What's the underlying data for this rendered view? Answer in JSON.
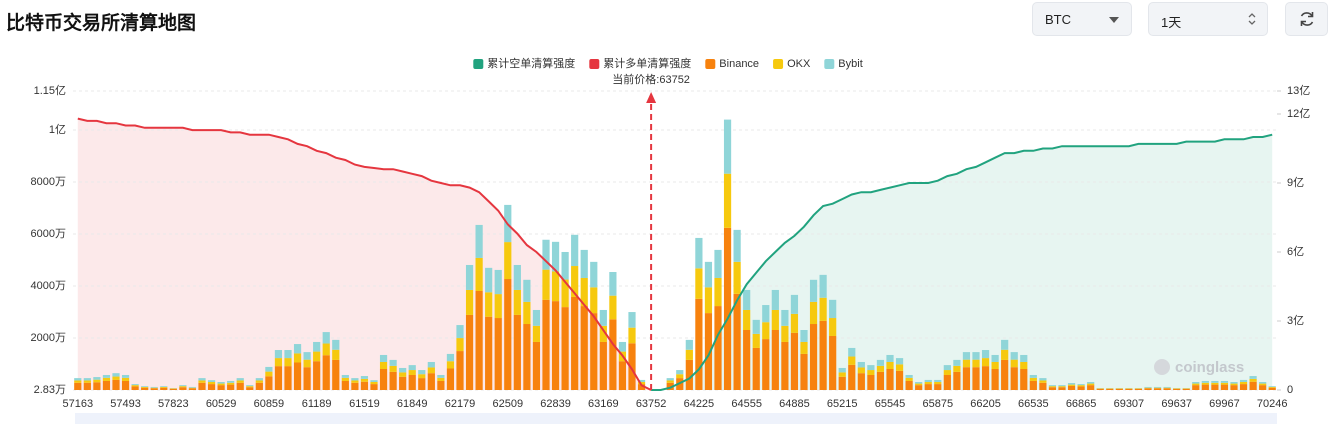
{
  "header": {
    "title": "比特币交易所清算地图",
    "symbol": "BTC",
    "interval": "1天"
  },
  "chart_data": {
    "type": "combo",
    "stacked": true,
    "grid": true,
    "watermark": "coinglass",
    "current_price": {
      "value": 63752,
      "label": "当前价格:63752",
      "color": "#e5363f"
    },
    "categories": [
      "57163",
      null,
      null,
      null,
      null,
      "57493",
      null,
      null,
      null,
      null,
      "57823",
      null,
      null,
      null,
      null,
      "60529",
      null,
      null,
      null,
      null,
      "60859",
      null,
      null,
      null,
      null,
      "61189",
      null,
      null,
      null,
      null,
      "61519",
      null,
      null,
      null,
      null,
      "61849",
      null,
      null,
      null,
      null,
      "62179",
      null,
      null,
      null,
      null,
      "62509",
      null,
      null,
      null,
      null,
      "62839",
      null,
      null,
      null,
      null,
      "63169",
      null,
      null,
      null,
      null,
      "63752",
      null,
      null,
      null,
      null,
      "64225",
      null,
      null,
      null,
      null,
      "64555",
      null,
      null,
      null,
      null,
      "64885",
      null,
      null,
      null,
      null,
      "65215",
      null,
      null,
      null,
      null,
      "65545",
      null,
      null,
      null,
      null,
      "65875",
      null,
      null,
      null,
      null,
      "66205",
      null,
      null,
      null,
      null,
      "66535",
      null,
      null,
      null,
      null,
      "66865",
      null,
      null,
      null,
      null,
      "69307",
      null,
      null,
      null,
      null,
      "69637",
      null,
      null,
      null,
      null,
      "69967",
      null,
      null,
      null,
      null,
      "70246"
    ],
    "ylim": [
      28300,
      115000000
    ],
    "yticks": [
      {
        "value": 28300,
        "label": "2.83万"
      },
      {
        "value": 20000000,
        "label": "2000万"
      },
      {
        "value": 40000000,
        "label": "4000万"
      },
      {
        "value": 60000000,
        "label": "6000万"
      },
      {
        "value": 80000000,
        "label": "8000万"
      },
      {
        "value": 100000000,
        "label": "1亿"
      },
      {
        "value": 115000000,
        "label": "1.15亿"
      }
    ],
    "y2lim": [
      0,
      1300000000
    ],
    "y2ticks": [
      0,
      {
        "value": 300000000,
        "label": "3亿"
      },
      {
        "value": 600000000,
        "label": "6亿"
      },
      {
        "value": 900000000,
        "label": "9亿"
      },
      {
        "value": 1200000000,
        "label": "12亿"
      },
      {
        "value": 1300000000,
        "label": "13亿"
      }
    ],
    "series": [
      {
        "name": "累计空单清算强度",
        "type": "line",
        "axis": "y2",
        "color": "#21a37f",
        "values": [
          null,
          null,
          null,
          null,
          null,
          null,
          null,
          null,
          null,
          null,
          null,
          null,
          null,
          null,
          null,
          null,
          null,
          null,
          null,
          null,
          null,
          null,
          null,
          null,
          null,
          null,
          null,
          null,
          null,
          null,
          null,
          null,
          null,
          null,
          null,
          null,
          null,
          null,
          null,
          null,
          null,
          null,
          null,
          null,
          null,
          null,
          null,
          null,
          null,
          null,
          null,
          null,
          null,
          null,
          null,
          null,
          null,
          null,
          null,
          null,
          0,
          0,
          10000000.0,
          30000000.0,
          50000000.0,
          90000000.0,
          150000000.0,
          240000000.0,
          310000000.0,
          390000000.0,
          460000000.0,
          510000000.0,
          560000000.0,
          600000000.0,
          640000000.0,
          670000000.0,
          710000000.0,
          760000000.0,
          800000000.0,
          810000000.0,
          830000000.0,
          850000000.0,
          860000000.0,
          860000000.0,
          870000000.0,
          880000000.0,
          890000000.0,
          900000000.0,
          900000000.0,
          900000000.0,
          910000000.0,
          930000000.0,
          940000000.0,
          960000000.0,
          970000000.0,
          990000000.0,
          1010000000.0,
          1030000000.0,
          1030000000.0,
          1040000000.0,
          1040000000.0,
          1050000000.0,
          1050000000.0,
          1060000000.0,
          1060000000.0,
          1060000000.0,
          1060000000.0,
          1060000000.0,
          1060000000.0,
          1060000000.0,
          1060000000.0,
          1070000000.0,
          1070000000.0,
          1070000000.0,
          1070000000.0,
          1070000000.0,
          1080000000.0,
          1080000000.0,
          1080000000.0,
          1080000000.0,
          1090000000.0,
          1090000000.0,
          1090000000.0,
          1100000000.0,
          1100000000.0,
          1110000000.0
        ]
      },
      {
        "name": "累计多单清算强度",
        "type": "line",
        "axis": "y2",
        "color": "#e5363f",
        "values": [
          1180000000.0,
          1170000000.0,
          1170000000.0,
          1160000000.0,
          1160000000.0,
          1150000000.0,
          1150000000.0,
          1140000000.0,
          1140000000.0,
          1140000000.0,
          1140000000.0,
          1140000000.0,
          1130000000.0,
          1130000000.0,
          1130000000.0,
          1130000000.0,
          1120000000.0,
          1120000000.0,
          1110000000.0,
          1110000000.0,
          1110000000.0,
          1100000000.0,
          1090000000.0,
          1070000000.0,
          1060000000.0,
          1040000000.0,
          1030000000.0,
          1010000000.0,
          1000000000.0,
          980000000.0,
          970000000.0,
          965000000.0,
          960000000.0,
          960000000.0,
          950000000.0,
          940000000.0,
          930000000.0,
          910000000.0,
          900000000.0,
          890000000.0,
          890000000.0,
          880000000.0,
          860000000.0,
          820000000.0,
          780000000.0,
          720000000.0,
          680000000.0,
          630000000.0,
          600000000.0,
          560000000.0,
          520000000.0,
          470000000.0,
          420000000.0,
          370000000.0,
          320000000.0,
          260000000.0,
          200000000.0,
          150000000.0,
          90000000.0,
          20000000.0,
          0,
          null,
          null,
          null,
          null,
          null,
          null,
          null,
          null,
          null,
          null,
          null,
          null,
          null,
          null,
          null,
          null,
          null,
          null,
          null,
          null,
          null,
          null,
          null,
          null,
          null,
          null,
          null,
          null,
          null,
          null,
          null,
          null,
          null,
          null,
          null,
          null,
          null,
          null,
          null,
          null,
          null,
          null,
          null,
          null,
          null,
          null,
          null,
          null,
          null,
          null,
          null,
          null,
          null,
          null,
          null,
          null,
          null,
          null,
          null,
          null,
          null,
          null,
          null,
          null,
          null
        ]
      },
      {
        "name": "Binance",
        "type": "bar",
        "color": "#f7820e",
        "values": [
          2800000.0,
          2800000.0,
          3000000.0,
          3500000.0,
          3900000.0,
          3500000.0,
          1400000.0,
          900000.0,
          700000.0,
          900000.0,
          500000.0,
          1100000.0,
          700000.0,
          2800000.0,
          2300000.0,
          1900000.0,
          2100000.0,
          2800000.0,
          1100000.0,
          2800000.0,
          5300000.0,
          9200000.0,
          9200000.0,
          10600000.0,
          8800000.0,
          11100000.0,
          13400000.0,
          11600000.0,
          3500000.0,
          2800000.0,
          3200000.0,
          2300000.0,
          8100000.0,
          7000000.0,
          5100000.0,
          5800000.0,
          4600000.0,
          6500000.0,
          3500000.0,
          8300000.0,
          15000000.0,
          28900000.0,
          38100000.0,
          28200000.0,
          27700000.0,
          42700000.0,
          28900000.0,
          25400000.0,
          18500000.0,
          34700000.0,
          34200000.0,
          31900000.0,
          35800000.0,
          32300000.0,
          29600000.0,
          18500000.0,
          27200000.0,
          11100000.0,
          18000000.0,
          2300000.0,
          0,
          0,
          2800000.0,
          4600000.0,
          11600000.0,
          35100000.0,
          29600000.0,
          32300000.0,
          62400000.0,
          37000000.0,
          23100000.0,
          16200000.0,
          19600000.0,
          23100000.0,
          18500000.0,
          22000000.0,
          13900000.0,
          25400000.0,
          26600000.0,
          20800000.0,
          5100000.0,
          9700000.0,
          6500000.0,
          5800000.0,
          7000000.0,
          8100000.0,
          7400000.0,
          3500000.0,
          1900000.0,
          2300000.0,
          2300000.0,
          5800000.0,
          7000000.0,
          8800000.0,
          8800000.0,
          9200000.0,
          8100000.0,
          11600000.0,
          8800000.0,
          8100000.0,
          3500000.0,
          2800000.0,
          1100000.0,
          1100000.0,
          1600000.0,
          1400000.0,
          1900000.0,
          500000.0,
          500000.0,
          500000.0,
          500000.0,
          500000.0,
          700000.0,
          700000.0,
          700000.0,
          500000.0,
          500000.0,
          1900000.0,
          2100000.0,
          2100000.0,
          2100000.0,
          1900000.0,
          2300000.0,
          3200000.0,
          1900000.0,
          900000.0
        ]
      },
      {
        "name": "OKX",
        "type": "bar",
        "color": "#f6c90e",
        "values": [
          900000.0,
          900000.0,
          1000000.0,
          1200000.0,
          1300000.0,
          1200000.0,
          500000.0,
          300000.0,
          200000.0,
          300000.0,
          200000.0,
          400000.0,
          200000.0,
          900000.0,
          800000.0,
          600000.0,
          700000.0,
          900000.0,
          400000.0,
          900000.0,
          1800000.0,
          3100000.0,
          3100000.0,
          3500000.0,
          2900000.0,
          3700000.0,
          4500000.0,
          3900000.0,
          1200000.0,
          900000.0,
          1100000.0,
          800000.0,
          2700000.0,
          2300000.0,
          1700000.0,
          1900000.0,
          1500000.0,
          2200000.0,
          1200000.0,
          2800000.0,
          5000000.0,
          9600000.0,
          12700000.0,
          9400000.0,
          9200000.0,
          14200000.0,
          9600000.0,
          8500000.0,
          6200000.0,
          11600000.0,
          11400000.0,
          10600000.0,
          11900000.0,
          10800000.0,
          9900000.0,
          6200000.0,
          9100000.0,
          3700000.0,
          6000000.0,
          800000.0,
          0,
          0,
          900000.0,
          1500000.0,
          3900000.0,
          11700000.0,
          9900000.0,
          10800000.0,
          20800000.0,
          12300000.0,
          7700000.0,
          5400000.0,
          6500000.0,
          7700000.0,
          6200000.0,
          7300000.0,
          4600000.0,
          8500000.0,
          8900000.0,
          6900000.0,
          1700000.0,
          3200000.0,
          2200000.0,
          1900000.0,
          2300000.0,
          2700000.0,
          2500000.0,
          1200000.0,
          600000.0,
          800000.0,
          800000.0,
          1900000.0,
          2300000.0,
          2900000.0,
          2900000.0,
          3100000.0,
          2700000.0,
          3900000.0,
          2900000.0,
          2700000.0,
          1200000.0,
          900000.0,
          400000.0,
          400000.0,
          500000.0,
          500000.0,
          600000.0,
          200000.0,
          200000.0,
          200000.0,
          200000.0,
          200000.0,
          200000.0,
          200000.0,
          200000.0,
          200000.0,
          200000.0,
          600000.0,
          700000.0,
          700000.0,
          700000.0,
          600000.0,
          800000.0,
          1100000.0,
          600000.0,
          300000.0
        ]
      },
      {
        "name": "Bybit",
        "type": "bar",
        "color": "#8fd5d8",
        "values": [
          900000.0,
          900000.0,
          1000000.0,
          1100000.0,
          1300000.0,
          1100000.0,
          400000.0,
          300000.0,
          300000.0,
          300000.0,
          100000.0,
          400000.0,
          300000.0,
          900000.0,
          700000.0,
          600000.0,
          700000.0,
          900000.0,
          400000.0,
          900000.0,
          1800000.0,
          3100000.0,
          3100000.0,
          3600000.0,
          2900000.0,
          3700000.0,
          4400000.0,
          3800000.0,
          1100000.0,
          900000.0,
          1100000.0,
          700000.0,
          2700000.0,
          2300000.0,
          1700000.0,
          1900000.0,
          1600000.0,
          2100000.0,
          1100000.0,
          2800000.0,
          5000000.0,
          9600000.0,
          12700000.0,
          9400000.0,
          9300000.0,
          14300000.0,
          9600000.0,
          8500000.0,
          6100000.0,
          11500000.0,
          11400000.0,
          10600000.0,
          12000000.0,
          10800000.0,
          9800000.0,
          6100000.0,
          9100000.0,
          3700000.0,
          6000000.0,
          800000.0,
          0,
          0,
          900000.0,
          1600000.0,
          3800000.0,
          11700000.0,
          9800000.0,
          10800000.0,
          20800000.0,
          12300000.0,
          7700000.0,
          5400000.0,
          6600000.0,
          7700000.0,
          6100000.0,
          7300000.0,
          4600000.0,
          8500000.0,
          8800000.0,
          7000000.0,
          1700000.0,
          3300000.0,
          2100000.0,
          1900000.0,
          2300000.0,
          2700000.0,
          2400000.0,
          1100000.0,
          600000.0,
          800000.0,
          800000.0,
          1900000.0,
          2300000.0,
          2900000.0,
          2900000.0,
          3100000.0,
          2700000.0,
          3800000.0,
          2900000.0,
          2700000.0,
          1100000.0,
          900000.0,
          400000.0,
          400000.0,
          600000.0,
          400000.0,
          600000.0,
          100000.0,
          100000.0,
          100000.0,
          100000.0,
          100000.0,
          300000.0,
          300000.0,
          300000.0,
          100000.0,
          100000.0,
          600000.0,
          700000.0,
          700000.0,
          700000.0,
          600000.0,
          800000.0,
          1100000.0,
          600000.0,
          300000.0
        ]
      }
    ]
  }
}
